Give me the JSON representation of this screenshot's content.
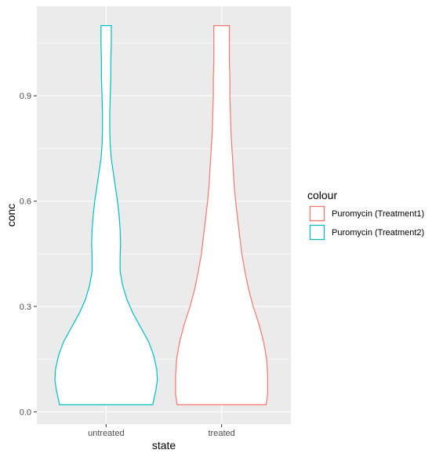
{
  "chart_data": {
    "type": "violin",
    "xlabel": "state",
    "ylabel": "conc",
    "categories": [
      "untreated",
      "treated"
    ],
    "ylim": [
      -0.035,
      1.155
    ],
    "yticks": [
      0.0,
      0.3,
      0.6,
      0.9
    ],
    "ytick_labels": [
      "0.0",
      "0.3",
      "0.6",
      "0.9"
    ],
    "grid": true,
    "legend_position": "right",
    "legend_title": "colour",
    "series": [
      {
        "name": "Puromycin (Treatment2)",
        "category": "untreated",
        "color": "#00BFC4",
        "y_min": 0.02,
        "y_max": 1.1,
        "profile": [
          [
            0.02,
            0.9
          ],
          [
            0.04,
            0.93
          ],
          [
            0.06,
            0.96
          ],
          [
            0.09,
            0.99
          ],
          [
            0.12,
            0.98
          ],
          [
            0.16,
            0.92
          ],
          [
            0.2,
            0.82
          ],
          [
            0.24,
            0.67
          ],
          [
            0.28,
            0.52
          ],
          [
            0.32,
            0.4
          ],
          [
            0.36,
            0.32
          ],
          [
            0.4,
            0.27
          ],
          [
            0.44,
            0.27
          ],
          [
            0.48,
            0.28
          ],
          [
            0.52,
            0.27
          ],
          [
            0.56,
            0.25
          ],
          [
            0.6,
            0.22
          ],
          [
            0.64,
            0.18
          ],
          [
            0.68,
            0.14
          ],
          [
            0.72,
            0.1
          ],
          [
            0.76,
            0.08
          ],
          [
            0.8,
            0.07
          ],
          [
            0.85,
            0.07
          ],
          [
            0.9,
            0.08
          ],
          [
            0.95,
            0.09
          ],
          [
            1.0,
            0.09
          ],
          [
            1.05,
            0.1
          ],
          [
            1.1,
            0.1
          ]
        ]
      },
      {
        "name": "Puromycin (Treatment1)",
        "category": "treated",
        "color": "#F8766D",
        "y_min": 0.02,
        "y_max": 1.1,
        "profile": [
          [
            0.02,
            0.86
          ],
          [
            0.05,
            0.89
          ],
          [
            0.1,
            0.89
          ],
          [
            0.15,
            0.87
          ],
          [
            0.2,
            0.81
          ],
          [
            0.25,
            0.72
          ],
          [
            0.3,
            0.61
          ],
          [
            0.35,
            0.52
          ],
          [
            0.4,
            0.45
          ],
          [
            0.45,
            0.39
          ],
          [
            0.5,
            0.35
          ],
          [
            0.55,
            0.31
          ],
          [
            0.6,
            0.27
          ],
          [
            0.65,
            0.24
          ],
          [
            0.7,
            0.22
          ],
          [
            0.75,
            0.2
          ],
          [
            0.8,
            0.18
          ],
          [
            0.85,
            0.17
          ],
          [
            0.9,
            0.16
          ],
          [
            0.95,
            0.16
          ],
          [
            1.0,
            0.15
          ],
          [
            1.05,
            0.15
          ],
          [
            1.1,
            0.15
          ]
        ]
      }
    ]
  }
}
